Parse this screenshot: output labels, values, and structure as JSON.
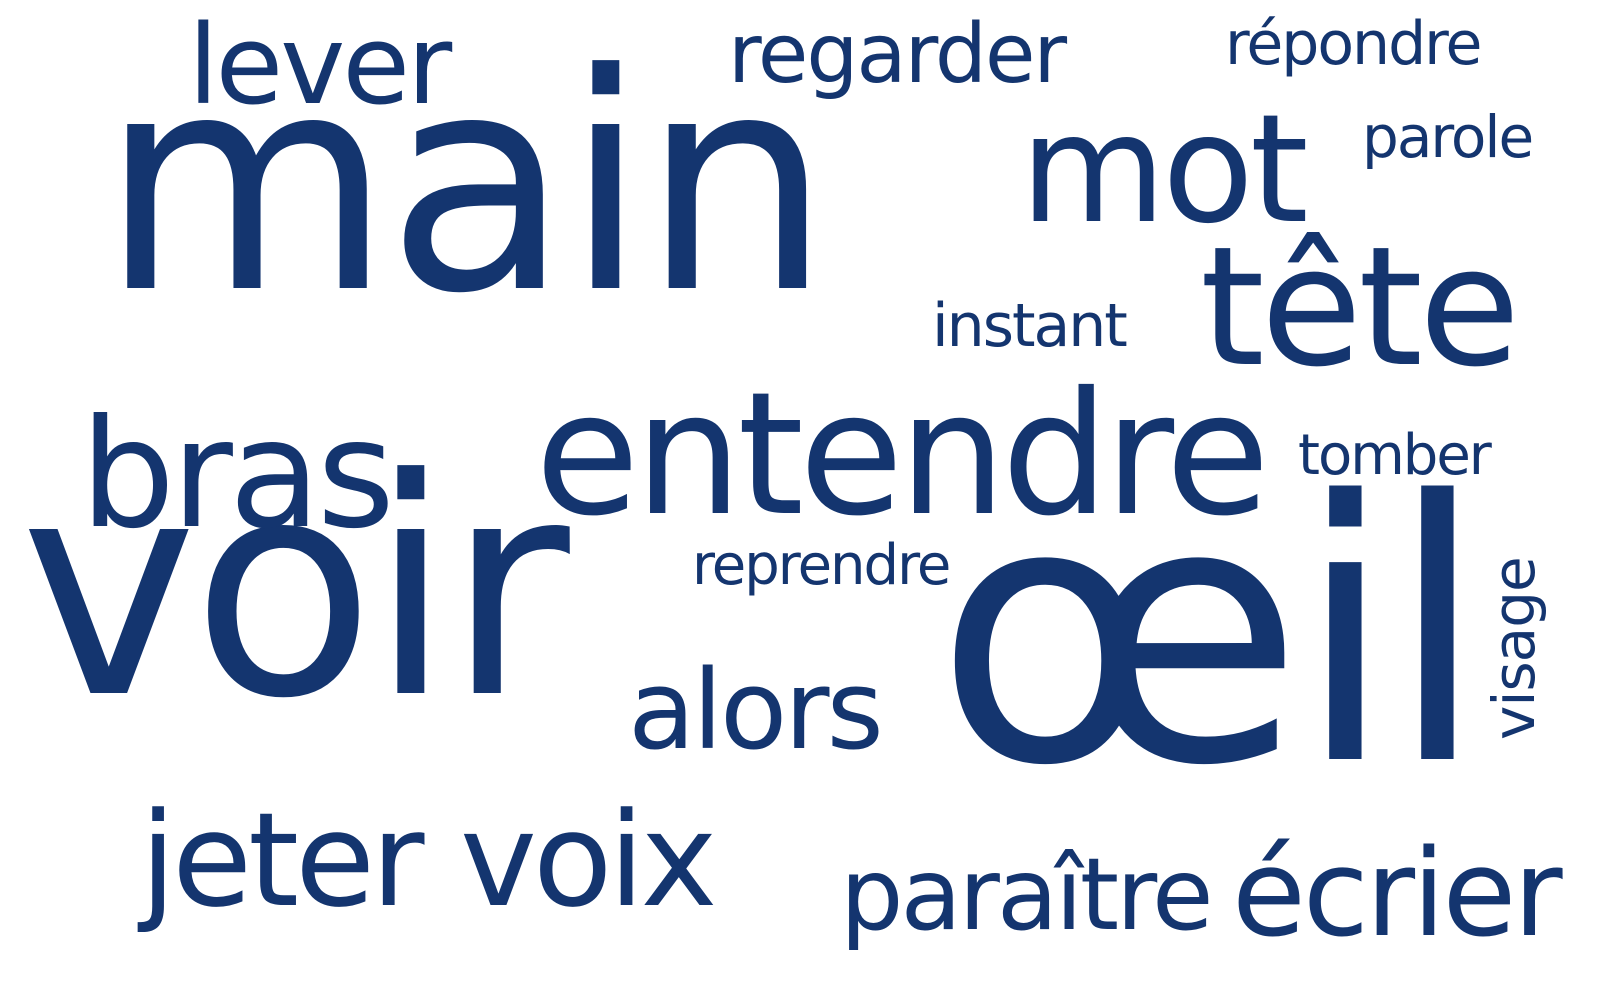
{
  "colors": {
    "background": "#ffffff",
    "word": "#14356f"
  },
  "words": {
    "main": "main",
    "voir": "voir",
    "oeil": "œil",
    "entendre": "entendre",
    "mot": "mot",
    "tete": "tête",
    "bras": "bras",
    "lever": "lever",
    "regarder": "regarder",
    "repondre": "répondre",
    "parole": "parole",
    "instant": "instant",
    "tomber": "tomber",
    "reprendre": "reprendre",
    "alors": "alors",
    "visage": "visage",
    "jeter": "jeter",
    "voix": "voix",
    "paraitre": "paraître",
    "ecrier": "écrier"
  }
}
